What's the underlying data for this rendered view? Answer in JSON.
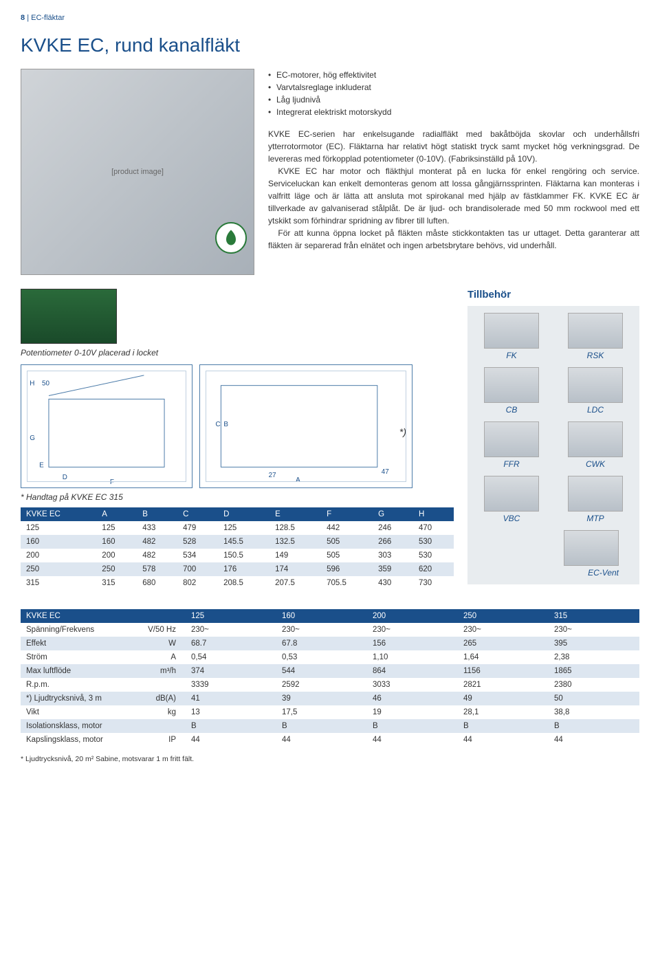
{
  "header": {
    "page_number": "8",
    "section": "EC-fläktar"
  },
  "title": "KVKE EC, rund kanalfläkt",
  "bullets": [
    "EC-motorer, hög effektivitet",
    "Varvtalsreglage inkluderat",
    "Låg ljudnivå",
    "Integrerat elektriskt motorskydd"
  ],
  "paragraphs": [
    "KVKE EC-serien har enkelsugande radialfläkt med bakåtböjda skovlar och underhållsfri ytterrotormotor (EC). Fläktarna har relativt högt statiskt tryck samt mycket hög verkningsgrad. De levereras med förkopplad potentiometer (0-10V). (Fabriksinställd på 10V).",
    "KVKE EC har motor och fläkthjul monterat på en lucka för enkel rengöring och service. Serviceluckan kan enkelt demonteras genom att lossa gångjärnssprinten. Fläktarna kan monteras i valfritt läge och är lätta att ansluta mot spirokanal med hjälp av fästklammer FK. KVKE EC är tillverkade av galvaniserad stålplåt. De är ljud- och brandisolerade med 50 mm rockwool med ett ytskikt som förhindrar spridning av fibrer till luften.",
    "För att kunna öppna locket på fläkten måste stickkontakten tas ur uttaget. Detta garanterar att fläkten är separerad från elnätet och ingen arbetsbrytare behövs, vid underhåll."
  ],
  "green_badge_text": "Green Ventilation",
  "potentiometer_caption": "Potentiometer 0-10V placerad i locket",
  "tillbehor": {
    "heading": "Tillbehör",
    "items": [
      "FK",
      "RSK",
      "CB",
      "LDC",
      "FFR",
      "CWK",
      "VBC",
      "MTP",
      "EC-Vent"
    ]
  },
  "handle_note": "* Handtag på KVKE EC 315",
  "drawing_asterisk": "*)",
  "dim_letters": [
    "A",
    "B",
    "C",
    "D",
    "E",
    "F",
    "G",
    "H"
  ],
  "dim_extra": {
    "h50": "50",
    "n27": "27",
    "n47": "47"
  },
  "dim_table": {
    "header": [
      "KVKE EC",
      "A",
      "B",
      "C",
      "D",
      "E",
      "F",
      "G",
      "H"
    ],
    "rows": [
      [
        "125",
        "125",
        "433",
        "479",
        "125",
        "128.5",
        "442",
        "246",
        "470"
      ],
      [
        "160",
        "160",
        "482",
        "528",
        "145.5",
        "132.5",
        "505",
        "266",
        "530"
      ],
      [
        "200",
        "200",
        "482",
        "534",
        "150.5",
        "149",
        "505",
        "303",
        "530"
      ],
      [
        "250",
        "250",
        "578",
        "700",
        "176",
        "174",
        "596",
        "359",
        "620"
      ],
      [
        "315",
        "315",
        "680",
        "802",
        "208.5",
        "207.5",
        "705.5",
        "430",
        "730"
      ]
    ]
  },
  "spec_table": {
    "header": [
      "KVKE EC",
      "",
      "125",
      "160",
      "200",
      "250",
      "315"
    ],
    "rows": [
      [
        "Spänning/Frekvens",
        "V/50 Hz",
        "230~",
        "230~",
        "230~",
        "230~",
        "230~"
      ],
      [
        "Effekt",
        "W",
        "68.7",
        "67.8",
        "156",
        "265",
        "395"
      ],
      [
        "Ström",
        "A",
        "0,54",
        "0,53",
        "1,10",
        "1,64",
        "2,38"
      ],
      [
        "Max luftflöde",
        "m³/h",
        "374",
        "544",
        "864",
        "1156",
        "1865"
      ],
      [
        "R.p.m.",
        "",
        "3339",
        "2592",
        "3033",
        "2821",
        "2380"
      ],
      [
        "*) Ljudtrycksnivå, 3 m",
        "dB(A)",
        "41",
        "39",
        "46",
        "49",
        "50"
      ],
      [
        "Vikt",
        "kg",
        "13",
        "17,5",
        "19",
        "28,1",
        "38,8"
      ],
      [
        "Isolationsklass, motor",
        "",
        "B",
        "B",
        "B",
        "B",
        "B"
      ],
      [
        "Kapslingsklass, motor",
        "IP",
        "44",
        "44",
        "44",
        "44",
        "44"
      ]
    ]
  },
  "footnote": "* Ljudtrycksnivå, 20 m² Sabine, motsvarar 1 m fritt fält.",
  "colors": {
    "brand_blue": "#1a4f8a",
    "row_alt": "#dde6f0",
    "acc_bg": "#e8ecef",
    "green": "#2a7a3a"
  }
}
